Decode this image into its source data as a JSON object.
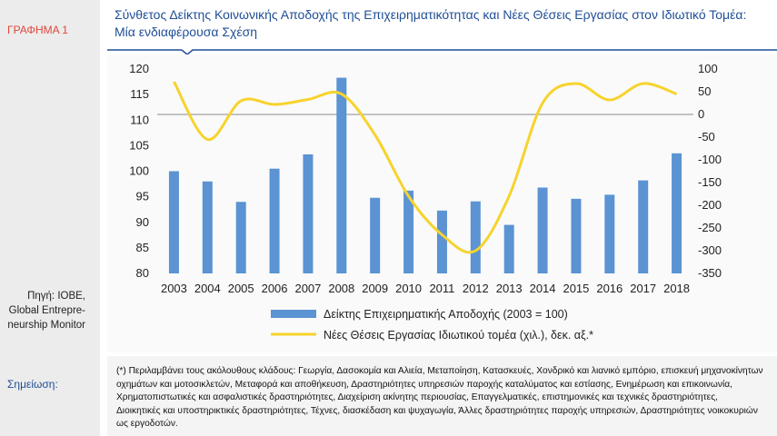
{
  "figure_label": "ΓΡΑΦΗΜΑ 1",
  "title": "Σύνθετος Δείκτης Κοινωνικής Αποδοχής της Επιχειρηματικότητας και Νέες Θέσεις Εργασίας στον Ιδιωτικό Τομέα: Μία ενδιαφέρουσα Σχέση",
  "source_lines": [
    "Πηγή: ΙΟΒΕ,",
    "Global Entrepre-",
    "neurship Monitor"
  ],
  "note_label": "Σημείωση:",
  "note_text": "(*) Περιλαμβάνει τους ακόλουθους κλάδους: Γεωργία, Δασοκομία και Αλιεία, Μεταποίηση, Κατασκευές, Χονδρικό και λιανικό εμπόριο, επισκευή μηχανοκίνητων οχημάτων και μοτοσικλετών, Μεταφορά και αποθήκευση, Δραστηριότητες υπηρεσιών παροχής καταλύματος και εστίασης, Ενημέρωση και επικοινωνία, Χρηματοπιστωτικές και ασφαλιστικές δραστηριότητες, Διαχείριση ακίνητης περιουσίας, Επαγγελματικές, επιστημονικές και τεχνικές δραστηριότητες, Διοικητικές και υποστηρικτικές δραστηριότητες, Τέχνες, διασκέδαση και ψυχαγωγία, Άλλες δραστηριότητες παροχής υπηρεσιών, Δραστηριότητες νοικοκυριών ως εργοδοτών.",
  "colors": {
    "bar": "#5b93d3",
    "line": "#f7d32d",
    "title": "#1f4e96",
    "red": "#e0463a",
    "zero_line": "#b0b0b0"
  },
  "chart_data": {
    "type": "bar+line",
    "categories": [
      "2003",
      "2004",
      "2005",
      "2006",
      "2007",
      "2008",
      "2009",
      "2010",
      "2011",
      "2012",
      "2013",
      "2014",
      "2015",
      "2016",
      "2017",
      "2018"
    ],
    "series": [
      {
        "name": "Δείκτης Επιχειρηματικής Αποδοχής (2003 = 100)",
        "type": "bar",
        "axis": "left",
        "values": [
          100,
          98,
          94,
          100.5,
          103.3,
          118.3,
          94.8,
          96.2,
          92.3,
          94.1,
          89.5,
          96.8,
          94.6,
          95.4,
          98.2,
          103.5
        ]
      },
      {
        "name": "Νέες Θέσεις  Εργασίας Ιδιωτικού τομέα (χιλ.), δεκ. αξ.*",
        "type": "line",
        "axis": "right",
        "values": [
          72,
          -55,
          30,
          22,
          33,
          45,
          -45,
          -180,
          -265,
          -300,
          -180,
          25,
          68,
          32,
          68,
          45
        ]
      }
    ],
    "left_axis": {
      "min": 80,
      "max": 120,
      "ticks": [
        80,
        85,
        90,
        95,
        100,
        105,
        110,
        115,
        120
      ]
    },
    "right_axis": {
      "min": -350,
      "max": 100,
      "ticks": [
        -350,
        -300,
        -250,
        -200,
        -150,
        -100,
        -50,
        0,
        50,
        100
      ]
    },
    "legend_position": "bottom"
  }
}
